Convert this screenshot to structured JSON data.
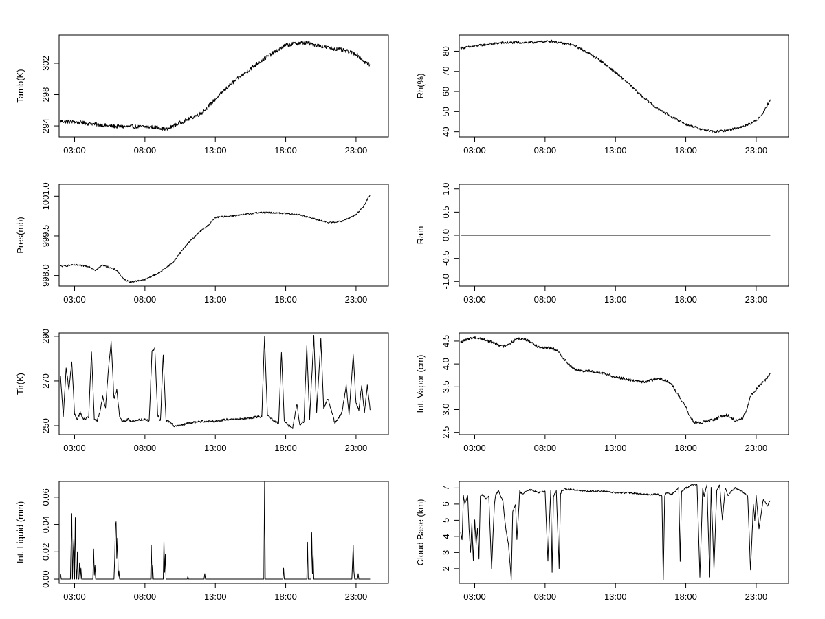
{
  "chart_data": [
    {
      "type": "line",
      "ylabel": "Tamb(K)",
      "xticks": [
        "03:00",
        "08:00",
        "13:00",
        "18:00",
        "23:00"
      ],
      "xlim": [
        1.9,
        25.3
      ],
      "ylim": [
        292.6,
        305.6
      ],
      "yticks": [
        "294",
        "298",
        "302"
      ],
      "x": [
        2.0,
        3,
        4,
        5,
        6,
        7,
        8,
        9,
        9.5,
        10,
        11,
        12,
        13,
        14,
        15,
        16,
        17,
        18,
        19,
        19.5,
        20,
        21,
        22,
        23,
        23.6,
        24.0
      ],
      "y": [
        294.6,
        294.5,
        294.3,
        294.1,
        293.9,
        293.9,
        293.9,
        293.8,
        293.5,
        294.0,
        294.8,
        295.6,
        297.4,
        299.2,
        300.6,
        302.0,
        303.2,
        304.3,
        304.6,
        304.6,
        304.4,
        304.0,
        303.7,
        303.2,
        302.2,
        301.8
      ],
      "noise": 0.25
    },
    {
      "type": "line",
      "ylabel": "Rh(%)",
      "xticks": [
        "03:00",
        "08:00",
        "13:00",
        "18:00",
        "23:00"
      ],
      "xlim": [
        1.9,
        25.3
      ],
      "ylim": [
        37.5,
        88
      ],
      "yticks": [
        "40",
        "50",
        "60",
        "70",
        "80"
      ],
      "x": [
        2.0,
        3,
        4,
        5,
        6,
        7,
        8,
        8.5,
        9,
        10,
        11,
        12,
        13,
        14,
        15,
        16,
        17,
        18,
        19,
        20,
        21,
        22,
        23,
        23.5,
        24.0
      ],
      "y": [
        81.5,
        82.5,
        83.5,
        84.2,
        84.3,
        84.3,
        84.8,
        85.0,
        84.2,
        83.0,
        79.5,
        75.0,
        69.5,
        63.5,
        57.0,
        51.5,
        47.5,
        43.8,
        41.5,
        40.0,
        40.8,
        42.5,
        45.5,
        49.5,
        56.0
      ],
      "noise": 0.6
    },
    {
      "type": "line",
      "ylabel": "Pres(mb)",
      "xticks": [
        "03:00",
        "08:00",
        "13:00",
        "18:00",
        "23:00"
      ],
      "xlim": [
        1.9,
        25.3
      ],
      "ylim": [
        997.6,
        1001.45
      ],
      "yticks": [
        "998.0",
        "999.5",
        "1001.0"
      ],
      "x": [
        2.0,
        3,
        4,
        4.5,
        5,
        6,
        6.5,
        7,
        7.5,
        8,
        9,
        10,
        11,
        12,
        12.5,
        13,
        14,
        15,
        16,
        17,
        18,
        19,
        20,
        21,
        22,
        23,
        23.5,
        24.0
      ],
      "y": [
        998.35,
        998.4,
        998.35,
        998.2,
        998.4,
        998.2,
        997.85,
        997.75,
        997.8,
        997.85,
        998.1,
        998.5,
        999.2,
        999.7,
        999.9,
        1000.2,
        1000.25,
        1000.3,
        1000.38,
        1000.38,
        1000.35,
        1000.3,
        1000.15,
        1000.0,
        1000.05,
        1000.3,
        1000.6,
        1001.05
      ],
      "noise": 0.03
    },
    {
      "type": "line",
      "ylabel": "Rain",
      "xticks": [
        "03:00",
        "08:00",
        "13:00",
        "18:00",
        "23:00"
      ],
      "xlim": [
        1.9,
        25.3
      ],
      "ylim": [
        -1.1,
        1.1
      ],
      "yticks": [
        "-1.0",
        "-0.5",
        "0.0",
        "0.5",
        "1.0"
      ],
      "x": [
        2.0,
        24.0
      ],
      "y": [
        0,
        0
      ],
      "noise": 0
    },
    {
      "type": "line",
      "ylabel": "Tir(K)",
      "xticks": [
        "03:00",
        "08:00",
        "13:00",
        "18:00",
        "23:00"
      ],
      "xlim": [
        1.9,
        25.3
      ],
      "ylim": [
        246,
        291.5
      ],
      "yticks": [
        "250",
        "270",
        "290"
      ],
      "x": [
        2.0,
        2.2,
        2.4,
        2.6,
        2.8,
        3.0,
        3.2,
        3.4,
        3.6,
        3.8,
        4.0,
        4.2,
        4.4,
        4.6,
        4.8,
        5.0,
        5.2,
        5.4,
        5.6,
        5.8,
        6.0,
        6.2,
        6.4,
        6.6,
        6.8,
        7.0,
        8.0,
        8.3,
        8.5,
        8.7,
        8.9,
        9.1,
        9.3,
        9.5,
        9.7,
        9.9,
        10.0,
        10.5,
        11.0,
        12.0,
        13.0,
        14.0,
        15.0,
        16.0,
        16.3,
        16.5,
        16.7,
        17.0,
        17.5,
        17.7,
        17.9,
        18.2,
        18.5,
        18.8,
        19.0,
        19.3,
        19.5,
        19.7,
        20.0,
        20.2,
        20.5,
        20.7,
        21.0,
        21.3,
        21.5,
        21.7,
        22.0,
        22.3,
        22.5,
        22.8,
        23.0,
        23.2,
        23.4,
        23.6,
        23.8,
        24.0
      ],
      "y": [
        272,
        254,
        276,
        266,
        279,
        255,
        253,
        256,
        253,
        253,
        254,
        283,
        253,
        252,
        256,
        263,
        258,
        275,
        288,
        262,
        266,
        254,
        252,
        252,
        253,
        252,
        253,
        252,
        283,
        285,
        255,
        252,
        282,
        252,
        252,
        251,
        250,
        250,
        251,
        252,
        252,
        253,
        253,
        254,
        254,
        290,
        255,
        253,
        251,
        283,
        252,
        250,
        249,
        260,
        250,
        252,
        286,
        253,
        290,
        256,
        289,
        258,
        262,
        256,
        251,
        253,
        256,
        268,
        255,
        282,
        260,
        257,
        268,
        256,
        268,
        257
      ],
      "noise": 0.5
    },
    {
      "type": "line",
      "ylabel": "Int. Vapor (cm)",
      "xticks": [
        "03:00",
        "08:00",
        "13:00",
        "18:00",
        "23:00"
      ],
      "xlim": [
        1.9,
        25.3
      ],
      "ylim": [
        2.45,
        4.68
      ],
      "yticks": [
        "2.5",
        "3.0",
        "3.5",
        "4.0",
        "4.5"
      ],
      "x": [
        2.0,
        2.5,
        3.0,
        3.5,
        4.0,
        4.5,
        5.0,
        5.5,
        6.0,
        6.5,
        7.0,
        7.5,
        8.0,
        8.5,
        9.0,
        9.5,
        10.0,
        10.5,
        11.0,
        12.0,
        13.0,
        14.0,
        15.0,
        16.0,
        16.5,
        17.0,
        17.5,
        18.0,
        18.3,
        18.6,
        19.0,
        19.5,
        20.0,
        20.5,
        21.0,
        21.5,
        22.0,
        22.3,
        22.6,
        23.0,
        23.5,
        24.0
      ],
      "y": [
        4.47,
        4.55,
        4.58,
        4.55,
        4.5,
        4.45,
        4.38,
        4.45,
        4.55,
        4.55,
        4.48,
        4.38,
        4.35,
        4.35,
        4.25,
        4.05,
        3.9,
        3.85,
        3.85,
        3.8,
        3.72,
        3.65,
        3.6,
        3.68,
        3.65,
        3.55,
        3.3,
        3.05,
        2.85,
        2.72,
        2.7,
        2.75,
        2.78,
        2.85,
        2.88,
        2.75,
        2.8,
        2.95,
        3.3,
        3.45,
        3.6,
        3.78
      ],
      "noise": 0.03
    },
    {
      "type": "line",
      "ylabel": "Int. Liquid (mm)",
      "xticks": [
        "03:00",
        "08:00",
        "13:00",
        "18:00",
        "23:00"
      ],
      "xlim": [
        1.9,
        25.3
      ],
      "ylim": [
        -0.003,
        0.0715
      ],
      "yticks": [
        "0.00",
        "0.02",
        "0.04",
        "0.06"
      ],
      "x": [
        2.0,
        2.05,
        2.1,
        2.7,
        2.8,
        2.85,
        2.9,
        2.95,
        3.0,
        3.05,
        3.1,
        3.15,
        3.2,
        3.25,
        3.3,
        3.35,
        3.4,
        3.45,
        3.5,
        4.3,
        4.35,
        4.4,
        4.45,
        4.5,
        5.8,
        5.85,
        5.9,
        5.95,
        6.0,
        6.05,
        6.1,
        6.15,
        6.2,
        8.4,
        8.45,
        8.5,
        8.55,
        8.6,
        9.3,
        9.35,
        9.4,
        9.45,
        9.5,
        11.0,
        11.05,
        11.1,
        12.2,
        12.25,
        12.3,
        16.45,
        16.5,
        16.55,
        17.8,
        17.85,
        17.9,
        19.5,
        19.55,
        19.6,
        19.8,
        19.85,
        19.9,
        19.95,
        20.0,
        22.7,
        22.75,
        22.8,
        22.85,
        22.9,
        23.1,
        23.15,
        23.2,
        24.0
      ],
      "y": [
        0.004,
        0.0,
        0.0,
        0.0,
        0.048,
        0.0,
        0.02,
        0.03,
        0.0,
        0.045,
        0.008,
        0.0,
        0.02,
        0.0,
        0.0,
        0.012,
        0.0,
        0.008,
        0.0,
        0.0,
        0.022,
        0.003,
        0.01,
        0.0,
        0.0,
        0.015,
        0.039,
        0.042,
        0.015,
        0.03,
        0.002,
        0.006,
        0.0,
        0.0,
        0.025,
        0.0,
        0.01,
        0.0,
        0.0,
        0.028,
        0.005,
        0.018,
        0.0,
        0.0,
        0.002,
        0.0,
        0.0,
        0.004,
        0.0,
        0.0,
        0.071,
        0.0,
        0.0,
        0.008,
        0.0,
        0.0,
        0.027,
        0.0,
        0.0,
        0.034,
        0.004,
        0.018,
        0.0,
        0.0,
        0.012,
        0.025,
        0.006,
        0.0,
        0.0,
        0.004,
        0.0,
        0.0
      ],
      "noise": 0
    },
    {
      "type": "line",
      "ylabel": "Cloud Base (km)",
      "xticks": [
        "03:00",
        "08:00",
        "13:00",
        "18:00",
        "23:00"
      ],
      "xlim": [
        1.9,
        25.3
      ],
      "ylim": [
        1.1,
        7.4
      ],
      "yticks": [
        "2",
        "3",
        "4",
        "5",
        "6",
        "7"
      ],
      "x": [
        2.0,
        2.1,
        2.2,
        2.3,
        2.5,
        2.6,
        2.7,
        2.8,
        2.9,
        3.0,
        3.1,
        3.2,
        3.3,
        3.4,
        3.6,
        3.8,
        4.0,
        4.2,
        4.4,
        4.5,
        4.7,
        5.0,
        5.2,
        5.4,
        5.6,
        5.7,
        5.9,
        6.0,
        6.2,
        6.4,
        6.5,
        6.7,
        7.0,
        7.5,
        8.0,
        8.2,
        8.4,
        8.5,
        8.6,
        8.8,
        9.0,
        9.1,
        9.2,
        9.3,
        9.4,
        9.5,
        10.0,
        11.0,
        12.0,
        13.0,
        14.0,
        15.0,
        16.0,
        16.3,
        16.4,
        16.5,
        16.6,
        17.0,
        17.5,
        17.6,
        17.7,
        18.0,
        18.5,
        18.8,
        19.0,
        19.2,
        19.3,
        19.5,
        19.7,
        19.8,
        20.0,
        20.2,
        20.4,
        20.6,
        20.8,
        21.0,
        21.2,
        21.5,
        22.0,
        22.4,
        22.6,
        22.8,
        22.9,
        23.0,
        23.2,
        23.5,
        23.8,
        24.0
      ],
      "y": [
        4.2,
        3.8,
        6.5,
        6.0,
        6.5,
        4.5,
        3.0,
        4.8,
        2.5,
        5.0,
        3.5,
        4.5,
        2.6,
        6.5,
        6.6,
        6.3,
        6.5,
        2.0,
        6.0,
        6.6,
        6.8,
        6.2,
        4.5,
        3.5,
        1.3,
        5.5,
        6.0,
        3.8,
        6.8,
        6.6,
        6.7,
        6.8,
        6.9,
        6.7,
        6.8,
        2.5,
        6.8,
        1.8,
        6.5,
        6.8,
        2.0,
        6.6,
        6.9,
        6.8,
        7.0,
        6.9,
        6.9,
        6.8,
        6.8,
        6.7,
        6.7,
        6.6,
        6.6,
        6.5,
        1.3,
        6.5,
        6.7,
        6.6,
        7.0,
        2.5,
        6.8,
        7.0,
        7.2,
        7.2,
        1.5,
        7.0,
        6.5,
        7.2,
        1.5,
        7.0,
        2.0,
        6.8,
        7.2,
        5.0,
        7.0,
        6.5,
        6.8,
        7.0,
        6.8,
        6.5,
        1.9,
        6.0,
        5.0,
        6.5,
        4.5,
        6.3,
        5.9,
        6.2
      ],
      "noise": 0.05
    }
  ]
}
